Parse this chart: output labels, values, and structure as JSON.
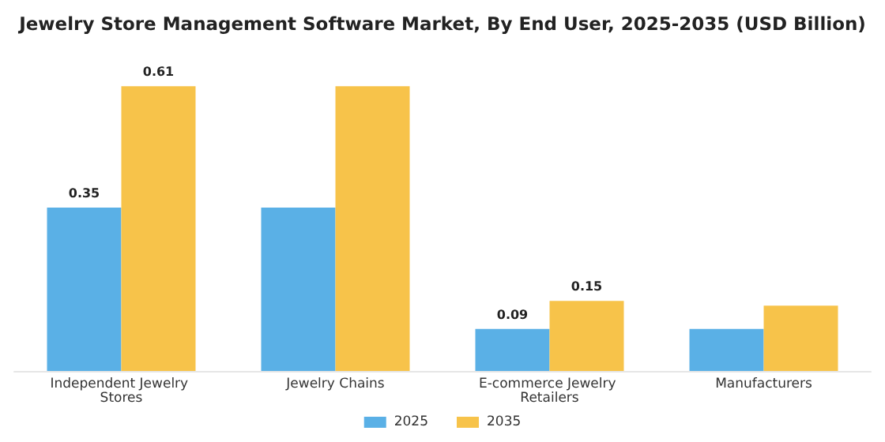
{
  "chart_data": {
    "type": "bar",
    "title": "Jewelry Store Management Software Market, By End User, 2025-2035 (USD Billion)",
    "categories": [
      "Independent Jewelry Stores",
      "Jewelry Chains",
      "E-commerce Jewelry Retailers",
      "Manufacturers"
    ],
    "series": [
      {
        "name": "2025",
        "color": "#5ab0e6",
        "values": [
          0.35,
          0.35,
          0.09,
          0.09
        ],
        "value_labels": [
          "0.35",
          null,
          "0.09",
          null
        ]
      },
      {
        "name": "2035",
        "color": "#f7c34a",
        "values": [
          0.61,
          0.61,
          0.15,
          0.14
        ],
        "value_labels": [
          "0.61",
          null,
          "0.15",
          null
        ]
      }
    ],
    "legend": "bottom",
    "grid": false
  }
}
